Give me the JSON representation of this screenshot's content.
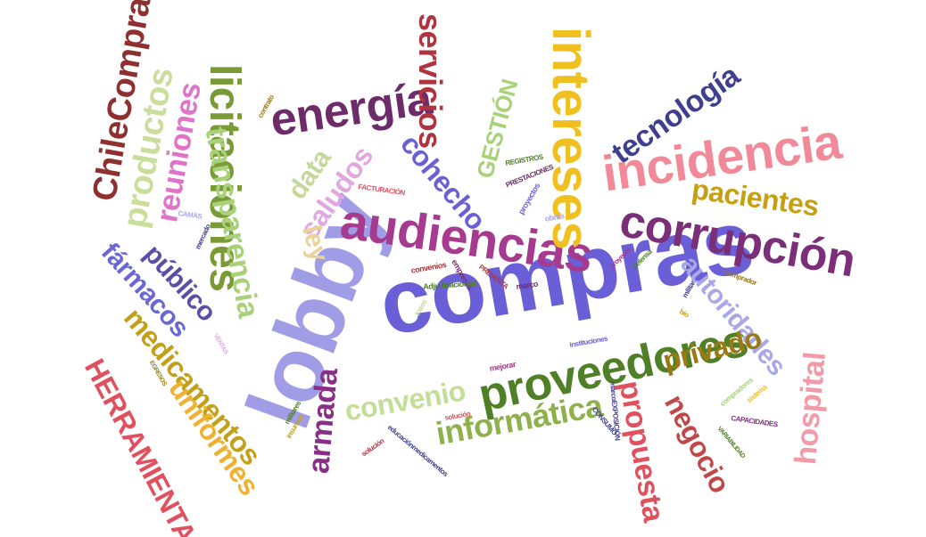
{
  "words": [
    {
      "text": "compras",
      "color": "#6a5fd6"
    },
    {
      "text": "lobby",
      "color": "#a09de6"
    },
    {
      "text": "proveedores",
      "color": "#4f7f26"
    },
    {
      "text": "audiencias",
      "color": "#a53a8f"
    },
    {
      "text": "corrupción",
      "color": "#7b2f78"
    },
    {
      "text": "incidencia",
      "color": "#f08a98"
    },
    {
      "text": "intereses",
      "color": "#f0c020"
    },
    {
      "text": "energía",
      "color": "#6e2b6a"
    },
    {
      "text": "licitaciones",
      "color": "#7a9a36"
    },
    {
      "text": "tecnología",
      "color": "#3f3f8f"
    },
    {
      "text": "servicios",
      "color": "#b0343e"
    },
    {
      "text": "ChileCompra",
      "color": "#8f3030"
    },
    {
      "text": "productos",
      "color": "#c8de9a"
    },
    {
      "text": "reuniones",
      "color": "#e072c8"
    },
    {
      "text": "transparencia",
      "color": "#a8d27a"
    },
    {
      "text": "data",
      "color": "#c4d89a"
    },
    {
      "text": "saludos",
      "color": "#e2a6e0"
    },
    {
      "text": "cohecho",
      "color": "#6a5fd6"
    },
    {
      "text": "GESTIÓN",
      "color": "#a8d27a"
    },
    {
      "text": "pacientes",
      "color": "#c6a013"
    },
    {
      "text": "autoridades",
      "color": "#a8a8e6"
    },
    {
      "text": "ley",
      "color": "#ead39a"
    },
    {
      "text": "público",
      "color": "#5a4ea8"
    },
    {
      "text": "fármacos",
      "color": "#6a66d4"
    },
    {
      "text": "medicamentos",
      "color": "#c2a01a"
    },
    {
      "text": "uniformes",
      "color": "#f0b030"
    },
    {
      "text": "HERRAMIENTA",
      "color": "#e0505e"
    },
    {
      "text": "armada",
      "color": "#8a2f88"
    },
    {
      "text": "convenio",
      "color": "#c4dd98"
    },
    {
      "text": "informática",
      "color": "#8fb14c"
    },
    {
      "text": "privado",
      "color": "#9a7a14"
    },
    {
      "text": "propuesta",
      "color": "#e0505e"
    },
    {
      "text": "negocio",
      "color": "#c04848"
    },
    {
      "text": "hospital",
      "color": "#f29aa8"
    },
    {
      "text": "REGISTROS",
      "color": "#4f7f26"
    },
    {
      "text": "PRESTACIONES",
      "color": "#6e2b6a"
    },
    {
      "text": "proyectos",
      "color": "#6a5fd6"
    },
    {
      "text": "FACTURACIÓN",
      "color": "#e0505e"
    },
    {
      "text": "CAMAS",
      "color": "#a8a8e6"
    },
    {
      "text": "mercado",
      "color": "#3f3f8f"
    },
    {
      "text": "contrato",
      "color": "#9a7a14"
    },
    {
      "text": "obras",
      "color": "#a8a8e6"
    },
    {
      "text": "convenios",
      "color": "#b0343e"
    },
    {
      "text": "empresas",
      "color": "#7b2f78"
    },
    {
      "text": "PRESENTA",
      "color": "#b0343e"
    },
    {
      "text": "marco",
      "color": "#6e2b6a"
    },
    {
      "text": "Adjudicaciones",
      "color": "#4f7f26"
    },
    {
      "text": "tratos",
      "color": "#c4dd98"
    },
    {
      "text": "proyecto",
      "color": "#a53a8f"
    },
    {
      "text": "defensa",
      "color": "#4f7f26"
    },
    {
      "text": "comprador",
      "color": "#9a7a14"
    },
    {
      "text": "militar",
      "color": "#3f3f8f"
    },
    {
      "text": "bio",
      "color": "#c6a013"
    },
    {
      "text": "instituciones",
      "color": "#6a5fd6"
    },
    {
      "text": "mejorar",
      "color": "#a53a8f"
    },
    {
      "text": "VENTAS",
      "color": "#e2a6e0"
    },
    {
      "text": "EGRESOS",
      "color": "#9a7a14"
    },
    {
      "text": "militares",
      "color": "#4f7f26"
    },
    {
      "text": "insumos",
      "color": "#c6a013"
    },
    {
      "text": "solución",
      "color": "#e0505e"
    },
    {
      "text": "solución",
      "color": "#b0343e"
    },
    {
      "text": "educaciónmedicamentos",
      "color": "#3f3f8f"
    },
    {
      "text": "marcoEXPOSICIÓN",
      "color": "#3f3f8f"
    },
    {
      "text": "CONSUMO",
      "color": "#3f3f8f"
    },
    {
      "text": "compradores",
      "color": "#a8d27a"
    },
    {
      "text": "sistema",
      "color": "#f0c020"
    },
    {
      "text": "CAPACIDADES",
      "color": "#7b2f78"
    },
    {
      "text": "VARIABILIDAD",
      "color": "#4f7f26"
    }
  ]
}
